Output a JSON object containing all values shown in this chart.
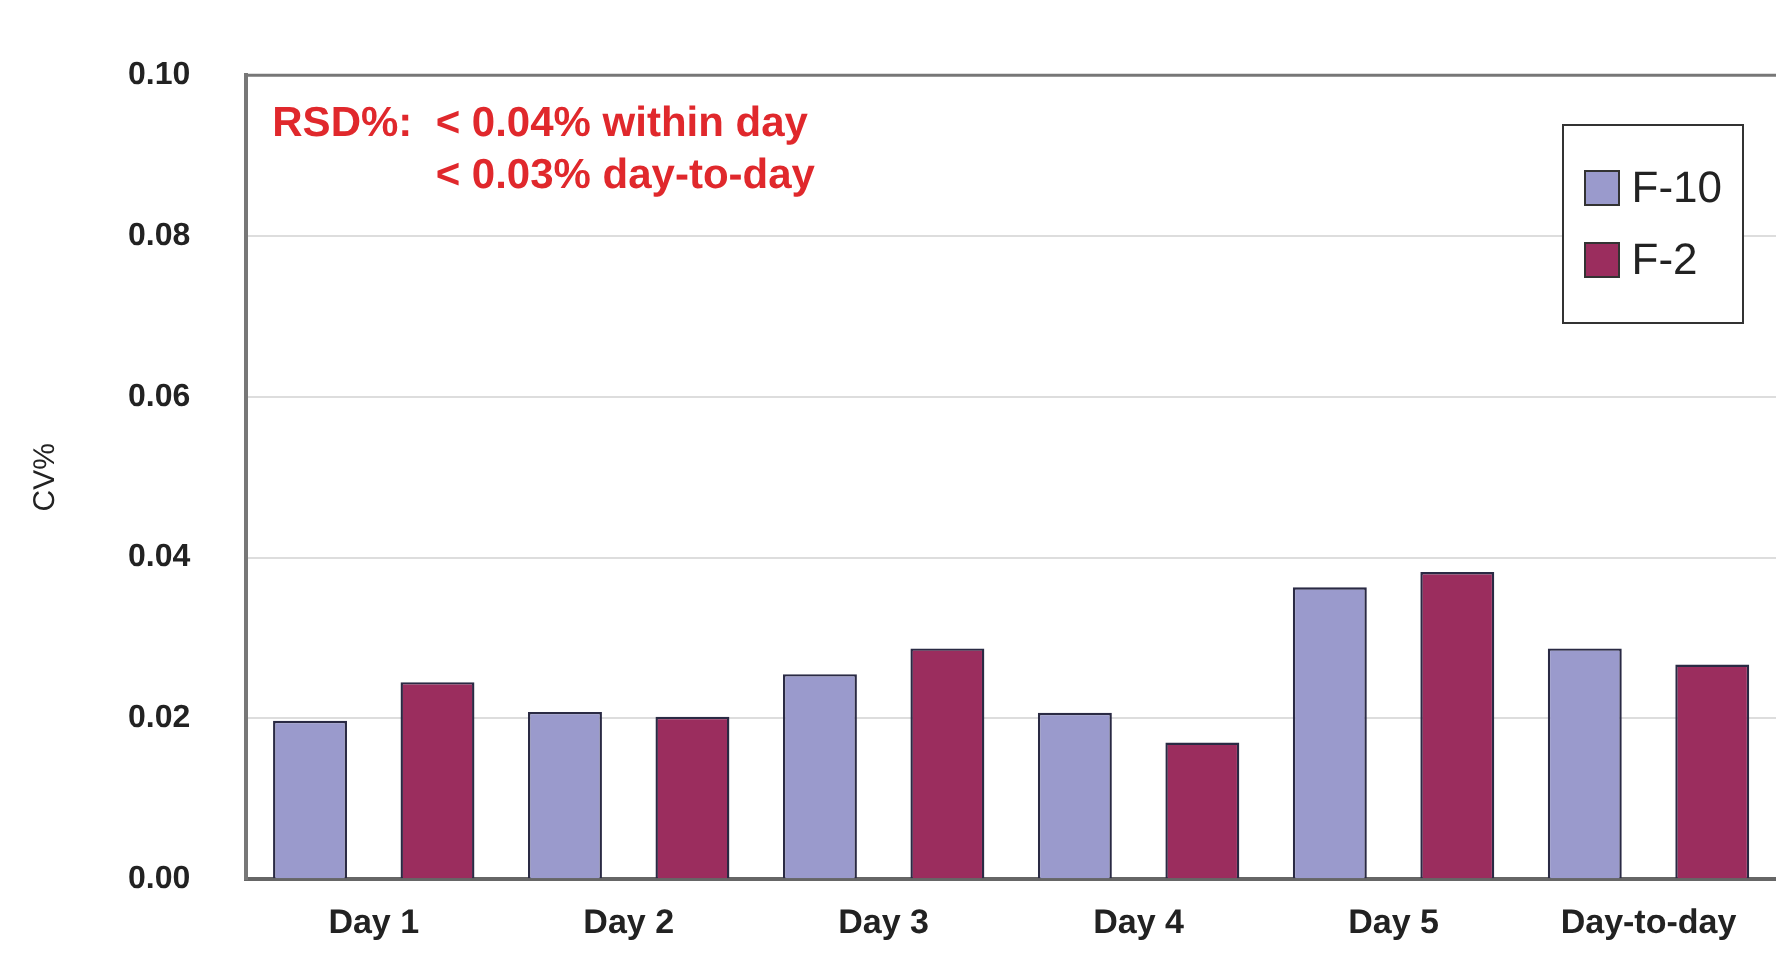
{
  "chart_data": {
    "type": "bar",
    "ylabel": "CV%",
    "categories": [
      "Day 1",
      "Day 2",
      "Day 3",
      "Day 4",
      "Day 5",
      "Day-to-day"
    ],
    "series": [
      {
        "name": "F-10",
        "color": "#9a9acc",
        "values": [
          0.0197,
          0.0208,
          0.0255,
          0.0207,
          0.0363,
          0.0287
        ]
      },
      {
        "name": "F-2",
        "color": "#9b2d5e",
        "values": [
          0.0245,
          0.0202,
          0.0287,
          0.017,
          0.0382,
          0.0267
        ]
      }
    ],
    "ylim": [
      0,
      0.1
    ],
    "yticks": [
      {
        "value": 0,
        "label": "0.00"
      },
      {
        "value": 0.02,
        "label": "0.02"
      },
      {
        "value": 0.04,
        "label": "0.04"
      },
      {
        "value": 0.06,
        "label": "0.06"
      },
      {
        "value": 0.08,
        "label": "0.08"
      },
      {
        "value": 0.1,
        "label": "0.10"
      }
    ],
    "annotations": [
      "RSD%:  < 0.04% within day",
      "< 0.03% day-to-day"
    ],
    "grid": "y",
    "legend": "top right"
  }
}
